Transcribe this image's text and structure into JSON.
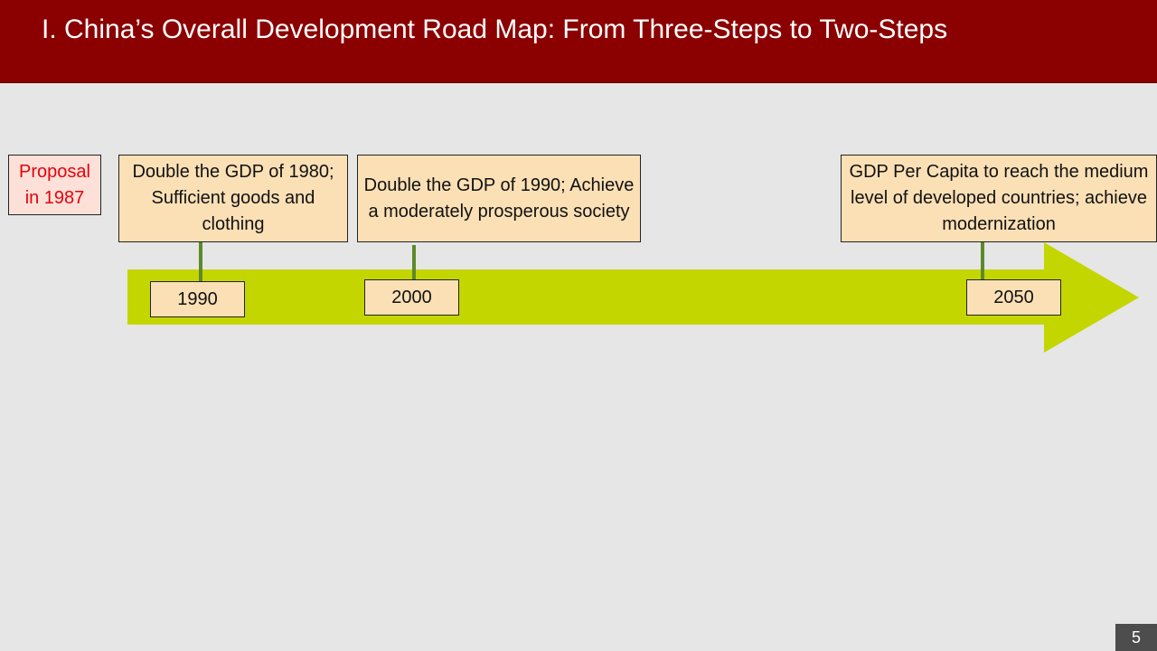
{
  "slide": {
    "title": "I. China’s Overall Development Road Map: From Three-Steps to Two-Steps",
    "page_number": "5"
  },
  "proposal": {
    "line1": "Proposal",
    "line2": "in 1987"
  },
  "milestones": [
    {
      "year": "1990",
      "description": "Double the GDP of 1980; Sufficient goods and clothing"
    },
    {
      "year": "2000",
      "description": "Double the GDP of 1990; Achieve a moderately prosperous society"
    },
    {
      "year": "2050",
      "description": "GDP Per Capita to reach the medium level of developed countries; achieve modernization"
    }
  ],
  "colors": {
    "title_bar": "#8b0000",
    "arrow": "#c4d600",
    "box_fill": "#fbe0b6",
    "stem": "#5c8a2a",
    "proposal_text": "#e8000b"
  }
}
